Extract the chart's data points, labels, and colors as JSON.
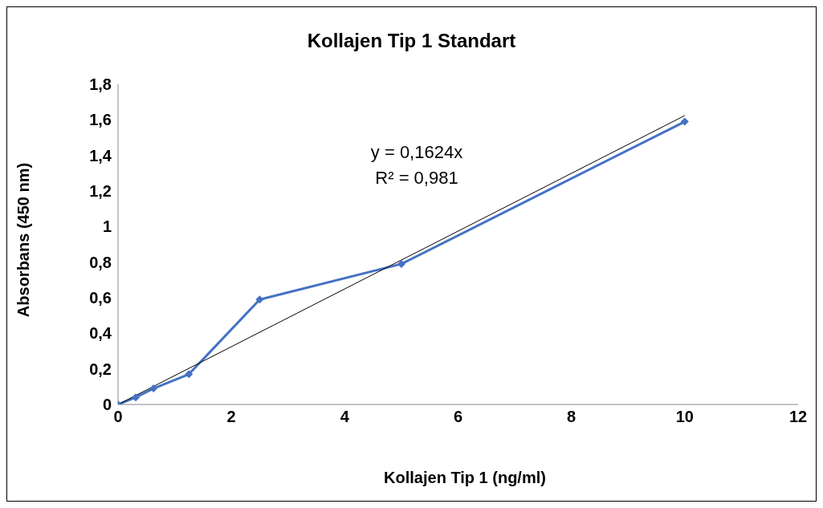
{
  "chart_data": {
    "type": "line",
    "title": "Kollajen Tip 1 Standart",
    "xlabel": "Kollajen Tip 1 (ng/ml)",
    "ylabel": "Absorbans (450 nm)",
    "x": [
      0,
      0.3125,
      0.625,
      1.25,
      2.5,
      5,
      10
    ],
    "series": [
      {
        "color": "#4472c4",
        "values": [
          0,
          0.04,
          0.09,
          0.17,
          0.59,
          0.79,
          1.59
        ]
      },
      {
        "type": "line",
        "color": "#000000",
        "x": [
          0,
          10
        ],
        "values": [
          0,
          1.624
        ],
        "marker": "none"
      }
    ],
    "xlim": [
      0,
      12
    ],
    "xticks": [
      0,
      2,
      4,
      6,
      8,
      10,
      12
    ],
    "ylim": [
      0,
      1.8
    ],
    "yticks": [
      0,
      {
        "value": 0.2,
        "label": "0,2"
      },
      {
        "value": 0.4,
        "label": "0,4"
      },
      {
        "value": 0.6,
        "label": "0,6"
      },
      {
        "value": 0.8,
        "label": "0,8"
      },
      1,
      {
        "value": 1.2,
        "label": "1,2"
      },
      {
        "value": 1.4,
        "label": "1,4"
      },
      {
        "value": 1.6,
        "label": "1,6"
      },
      {
        "value": 1.8,
        "label": "1,8"
      }
    ],
    "annotations": [
      "y = 0,1624x",
      "R² = 0,981"
    ],
    "grid": false,
    "marker": "diamond",
    "line_style": "solid"
  }
}
